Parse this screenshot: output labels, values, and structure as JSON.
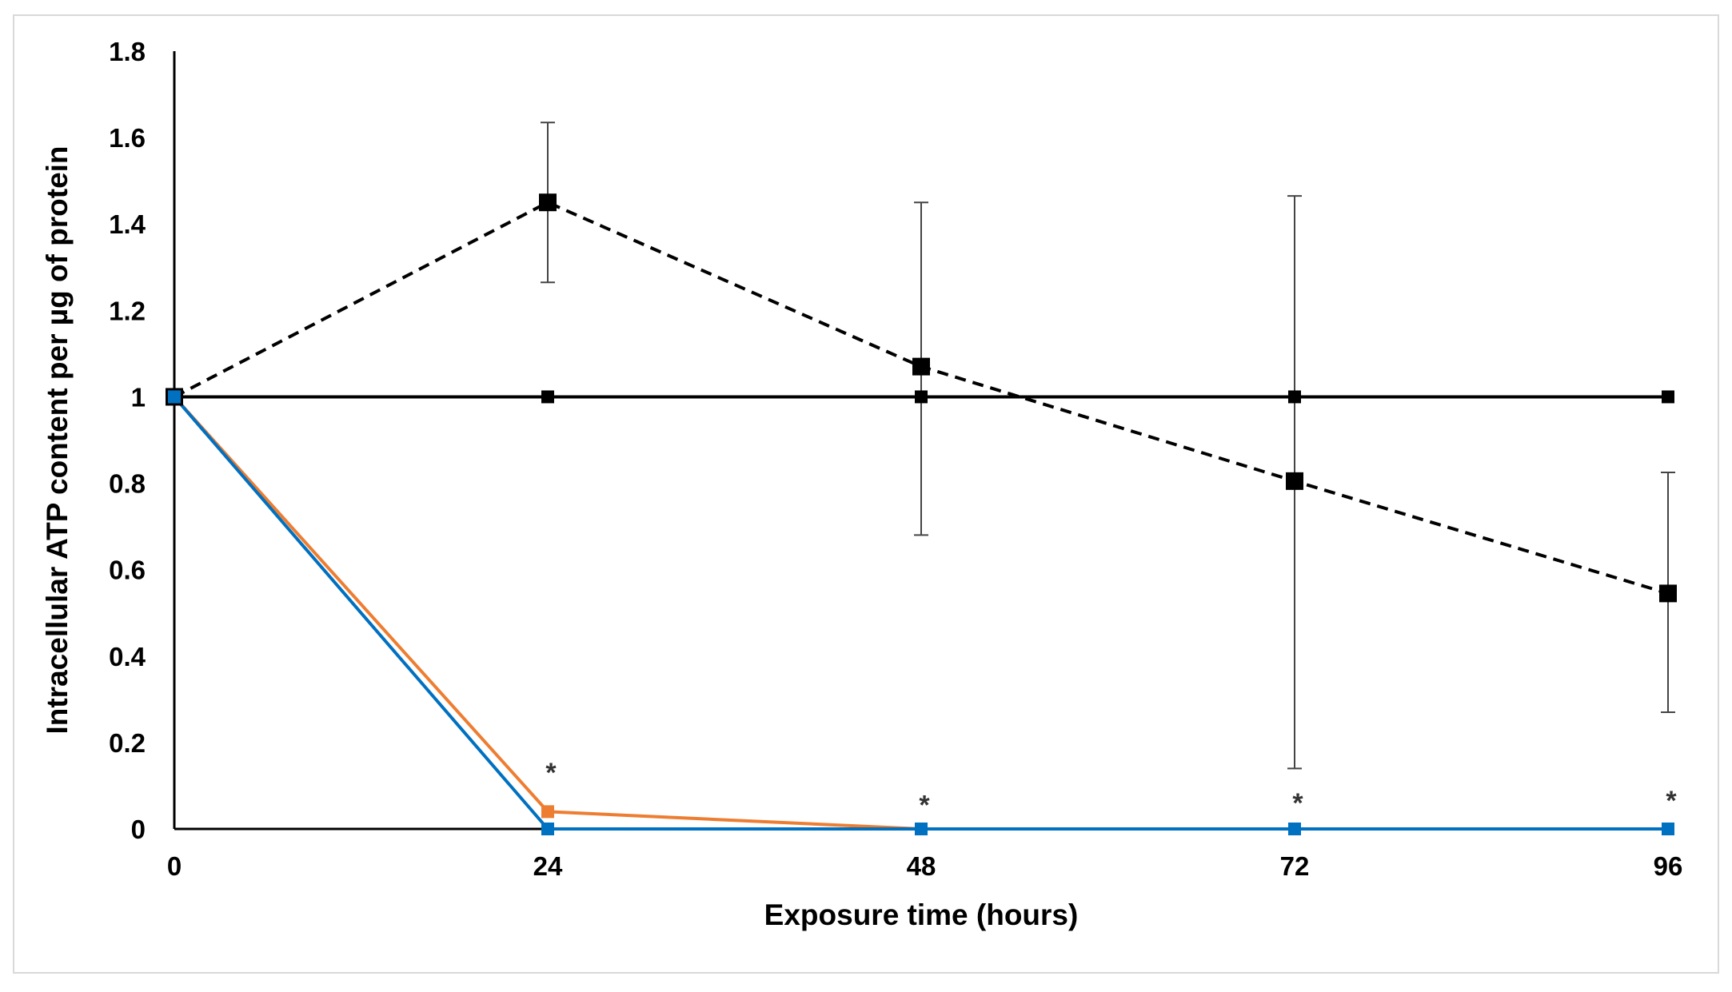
{
  "chart_data": {
    "type": "line",
    "title": "",
    "xlabel": "Exposure time (hours)",
    "ylabel": "Intracellular ATP content per µg of protein",
    "xlim": [
      0,
      96
    ],
    "ylim": [
      0,
      1.8
    ],
    "x_ticks": [
      0,
      24,
      48,
      72,
      96
    ],
    "y_ticks": [
      0,
      0.2,
      0.4,
      0.6,
      0.8,
      1,
      1.2,
      1.4,
      1.6,
      1.8
    ],
    "y_tick_labels": [
      "0",
      "0.2",
      "0.4",
      "0.6",
      "0.8",
      "1",
      "1.2",
      "1.4",
      "1.6",
      "1.8"
    ],
    "grid": false,
    "legend": "none",
    "series": [
      {
        "x": [
          0,
          24,
          48,
          72,
          96
        ],
        "values": [
          1,
          1,
          1,
          1,
          1
        ],
        "color": "#000000",
        "line_style": "solid",
        "marker": "square-small"
      },
      {
        "x": [
          0,
          24,
          48,
          72,
          96
        ],
        "values": [
          1,
          1.45,
          1.07,
          0.805,
          0.545
        ],
        "error_low": [
          1,
          1.265,
          0.68,
          0.14,
          0.27
        ],
        "error_high": [
          1,
          1.635,
          1.45,
          1.465,
          0.825
        ],
        "color": "#000000",
        "line_style": "dashed",
        "marker": "square-large"
      },
      {
        "x": [
          0,
          24,
          48,
          72,
          96
        ],
        "values": [
          1,
          0.04,
          0,
          0,
          0
        ],
        "color": "#ed7d31",
        "line_style": "solid",
        "marker": "square-small"
      },
      {
        "x": [
          0,
          24,
          48,
          72,
          96
        ],
        "values": [
          1,
          0,
          0,
          0,
          0
        ],
        "color": "#0070c0",
        "line_style": "solid",
        "marker": "square-small"
      }
    ],
    "annotations": [
      {
        "text": "*",
        "x": 24,
        "y": 0.135
      },
      {
        "text": "*",
        "x": 48,
        "y": 0.06
      },
      {
        "text": "*",
        "x": 72,
        "y": 0.065
      },
      {
        "text": "*",
        "x": 96,
        "y": 0.07
      }
    ]
  }
}
